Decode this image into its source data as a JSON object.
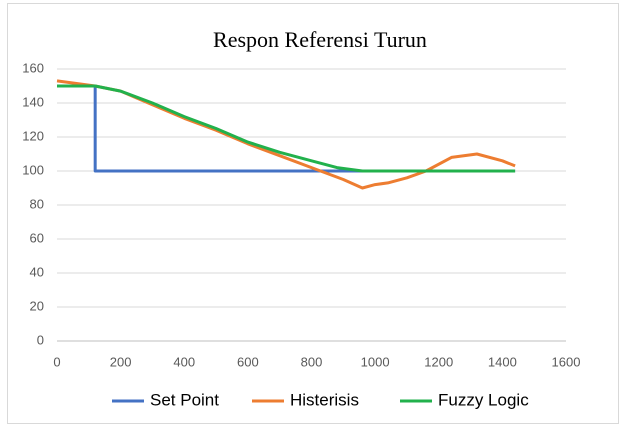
{
  "chart_data": {
    "type": "line",
    "title": "Respon Referensi Turun",
    "series": [
      {
        "name": "Set Point",
        "color": "#4472c4",
        "x": [
          0,
          120,
          120,
          1440
        ],
        "values": [
          150,
          150,
          100,
          100
        ]
      },
      {
        "name": "Histerisis",
        "color": "#ed7d31",
        "x": [
          0,
          120,
          200,
          300,
          400,
          500,
          600,
          700,
          800,
          900,
          960,
          1000,
          1040,
          1100,
          1160,
          1240,
          1320,
          1400,
          1440
        ],
        "values": [
          153,
          150,
          147,
          139,
          131,
          124,
          116,
          109,
          102,
          95,
          90,
          92,
          93,
          96,
          100,
          108,
          110,
          106,
          103
        ]
      },
      {
        "name": "Fuzzy Logic",
        "color": "#22b14c",
        "x": [
          0,
          120,
          200,
          300,
          400,
          500,
          600,
          700,
          800,
          880,
          960,
          1440
        ],
        "values": [
          150,
          150,
          147,
          140,
          132,
          125,
          117,
          111,
          106,
          102,
          100,
          100
        ]
      }
    ],
    "xlim": [
      0,
      1600
    ],
    "xticks": [
      0,
      200,
      400,
      600,
      800,
      1000,
      1200,
      1400,
      1600
    ],
    "ylim": [
      0,
      160
    ],
    "yticks": [
      0,
      20,
      40,
      60,
      80,
      100,
      120,
      140,
      160
    ],
    "grid": true,
    "legend": "bottom"
  }
}
